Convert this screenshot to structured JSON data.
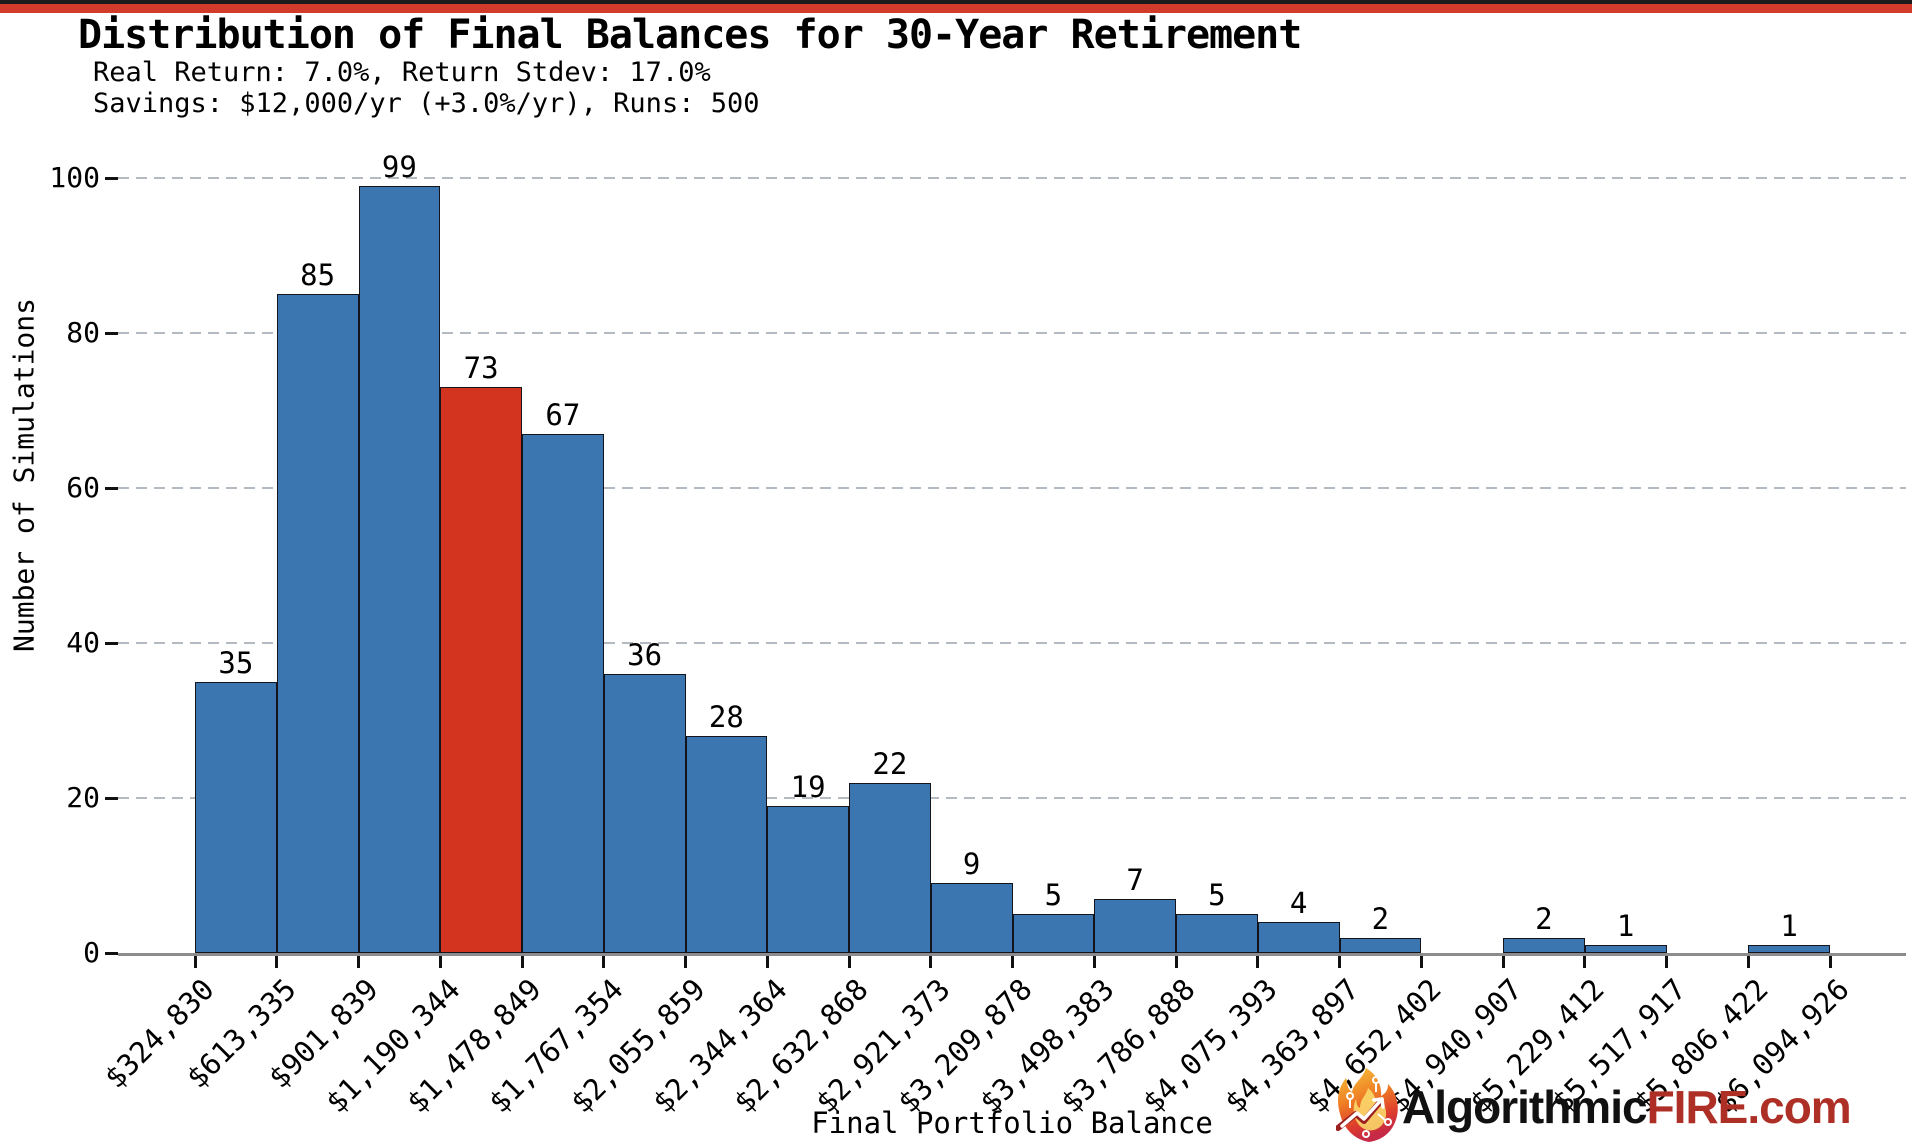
{
  "banner": {
    "top_line_color": "#1c1c1c",
    "accent_color": "#d23b2b"
  },
  "header": {
    "title": "Distribution of Final Balances for 30-Year Retirement",
    "subtitle_line1": "Real Return: 7.0%, Return Stdev: 17.0%",
    "subtitle_line2": "Savings: $12,000/yr (+3.0%/yr), Runs: 500"
  },
  "chart_data": {
    "type": "bar",
    "subtype": "histogram",
    "title": "Distribution of Final Balances for 30-Year Retirement",
    "xlabel": "Final Portfolio Balance",
    "ylabel": "Number of Simulations",
    "bin_edge_labels": [
      "$324,830",
      "$613,335",
      "$901,839",
      "$1,190,344",
      "$1,478,849",
      "$1,767,354",
      "$2,055,859",
      "$2,344,364",
      "$2,632,868",
      "$2,921,373",
      "$3,209,878",
      "$3,498,383",
      "$3,786,888",
      "$4,075,393",
      "$4,363,897",
      "$4,652,402",
      "$4,940,907",
      "$5,229,412",
      "$5,517,917",
      "$5,806,422",
      "$6,094,926"
    ],
    "values": [
      35,
      85,
      99,
      73,
      67,
      36,
      28,
      19,
      22,
      9,
      5,
      7,
      5,
      4,
      2,
      0,
      2,
      1,
      0,
      1
    ],
    "highlight_index": 3,
    "bar_color": "#3b76b0",
    "highlight_color": "#d23420",
    "bar_edge_color": "#14141c",
    "yticks": [
      0,
      20,
      40,
      60,
      80,
      100
    ],
    "ylim": [
      0,
      105
    ],
    "grid": "horizontal-dashed",
    "gridline_color": "#b3bac1",
    "axis_spine_color": "#8c8c8c",
    "legend": "none"
  },
  "footer_logo": {
    "icon": "flame-circuit-icon",
    "brand_black": "Algorithmic",
    "brand_red": "FIRE.com",
    "black_color": "#111111",
    "red_color": "#ae2f26"
  }
}
